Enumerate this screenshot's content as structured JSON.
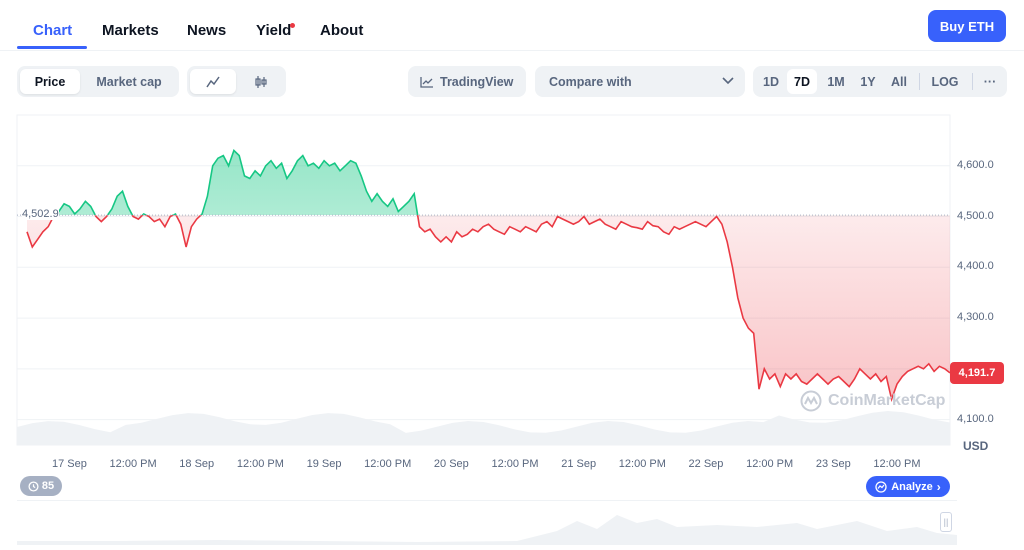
{
  "tabs": [
    {
      "label": "Chart",
      "active": true
    },
    {
      "label": "Markets"
    },
    {
      "label": "News"
    },
    {
      "label": "Yield"
    },
    {
      "label": "About"
    }
  ],
  "buy_button": "Buy ETH",
  "metric_toggle": {
    "price": "Price",
    "market_cap": "Market cap",
    "selected": "Price"
  },
  "chart_style": {
    "icons": [
      "line-chart-icon",
      "candlestick-icon"
    ],
    "selected": "line-chart-icon"
  },
  "tradingview": "TradingView",
  "compare": "Compare with",
  "ranges": [
    "1D",
    "7D",
    "1M",
    "1Y",
    "All",
    "LOG"
  ],
  "selected_range": "7D",
  "more": "···",
  "colors": {
    "up": "#16c784",
    "down": "#ea3943",
    "accent": "#3861fb"
  },
  "watermark": "CoinMarketCap",
  "events_count": "85",
  "analyze": "Analyze",
  "chart_data": {
    "type": "line",
    "title": "",
    "xlabel": "",
    "ylabel": "USD",
    "x_range_hours": [
      0,
      174
    ],
    "ylim": [
      4050,
      4700
    ],
    "yticks": [
      4100,
      4200,
      4300,
      4400,
      4500,
      4600
    ],
    "ytick_labels": [
      "4,100.0",
      "4,200.0",
      "4,300.0",
      "4,400.0",
      "4,500.0",
      "4,600.0"
    ],
    "xtick_labels": [
      "17 Sep",
      "12:00 PM",
      "18 Sep",
      "12:00 PM",
      "19 Sep",
      "12:00 PM",
      "20 Sep",
      "12:00 PM",
      "21 Sep",
      "12:00 PM",
      "22 Sep",
      "12:00 PM",
      "23 Sep",
      "12:00 PM"
    ],
    "xtick_hours": [
      8,
      20,
      32,
      44,
      56,
      68,
      80,
      92,
      104,
      116,
      128,
      140,
      152,
      164
    ],
    "baseline": 4502.9,
    "baseline_label": "4,502.9",
    "last_price": 4191.7,
    "last_price_label": "4,191.7",
    "grid": true,
    "series": [
      {
        "x": [
          0,
          1,
          2,
          3,
          4,
          5,
          6,
          7,
          8,
          9,
          10,
          11,
          12,
          13,
          14,
          15,
          16,
          17,
          18,
          19,
          20,
          21,
          22,
          23,
          24,
          25,
          26,
          27,
          28,
          29,
          30,
          31,
          32,
          33,
          34,
          35,
          36,
          37,
          38,
          39,
          40,
          41,
          42,
          43,
          44,
          45,
          46,
          47,
          48,
          49,
          50,
          51,
          52,
          53,
          54,
          55,
          56,
          57,
          58,
          59,
          60,
          61,
          62,
          63,
          64,
          65,
          66,
          67,
          68,
          69,
          70,
          71,
          72,
          73,
          74,
          75,
          76,
          77,
          78,
          79,
          80,
          81,
          82,
          83,
          84,
          85,
          86,
          87,
          88,
          89,
          90,
          91,
          92,
          93,
          94,
          95,
          96,
          97,
          98,
          99,
          100,
          101,
          102,
          103,
          104,
          105,
          106,
          107,
          108,
          109,
          110,
          111,
          112,
          113,
          114,
          115,
          116,
          117,
          118,
          119,
          120,
          121,
          122,
          123,
          124,
          125,
          126,
          127,
          128,
          129,
          130,
          131,
          132,
          133,
          134,
          135,
          136,
          137,
          138,
          139,
          140,
          141,
          142,
          143,
          144,
          145,
          146,
          147,
          148,
          149,
          150,
          151,
          152,
          153,
          154,
          155,
          156,
          157,
          158,
          159,
          160,
          161,
          162,
          163,
          164,
          165,
          166,
          167,
          168,
          169,
          170,
          171,
          172,
          173,
          174
        ],
        "y": [
          4470,
          4440,
          4455,
          4470,
          4480,
          4500,
          4510,
          4525,
          4520,
          4505,
          4515,
          4530,
          4520,
          4500,
          4490,
          4500,
          4515,
          4540,
          4550,
          4520,
          4500,
          4495,
          4505,
          4500,
          4490,
          4495,
          4480,
          4500,
          4505,
          4485,
          4440,
          4480,
          4495,
          4505,
          4540,
          4600,
          4615,
          4620,
          4600,
          4630,
          4620,
          4580,
          4575,
          4590,
          4580,
          4600,
          4610,
          4595,
          4605,
          4575,
          4590,
          4610,
          4620,
          4600,
          4605,
          4595,
          4610,
          4600,
          4605,
          4590,
          4600,
          4610,
          4605,
          4580,
          4550,
          4530,
          4545,
          4530,
          4520,
          4535,
          4510,
          4520,
          4530,
          4545,
          4480,
          4470,
          4475,
          4460,
          4450,
          4460,
          4450,
          4470,
          4460,
          4465,
          4475,
          4470,
          4480,
          4485,
          4475,
          4470,
          4465,
          4480,
          4475,
          4470,
          4480,
          4475,
          4470,
          4485,
          4490,
          4480,
          4500,
          4495,
          4490,
          4485,
          4490,
          4500,
          4485,
          4490,
          4495,
          4485,
          4480,
          4475,
          4490,
          4485,
          4480,
          4478,
          4475,
          4490,
          4482,
          4480,
          4470,
          4465,
          4480,
          4475,
          4480,
          4485,
          4490,
          4485,
          4480,
          4490,
          4500,
          4485,
          4450,
          4400,
          4340,
          4300,
          4280,
          4270,
          4160,
          4200,
          4180,
          4190,
          4165,
          4190,
          4180,
          4190,
          4175,
          4170,
          4180,
          4190,
          4180,
          4170,
          4180,
          4185,
          4175,
          4165,
          4180,
          4200,
          4190,
          4180,
          4190,
          4175,
          4185,
          4140,
          4170,
          4185,
          4195,
          4200,
          4205,
          4200,
          4210,
          4195,
          4205,
          4200,
          4192
        ]
      }
    ]
  }
}
